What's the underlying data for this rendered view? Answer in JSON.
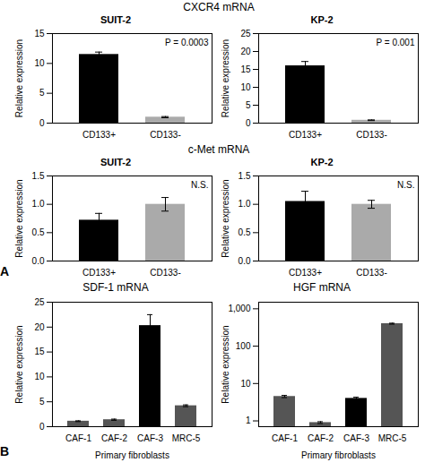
{
  "chart_data": [
    {
      "type": "bar",
      "title": "CXCR4 mRNA",
      "subtitle": "SUIT-2",
      "categories": [
        "CD133+",
        "CD133-"
      ],
      "values": [
        11.5,
        1.0
      ],
      "errors": [
        0.4,
        0.1
      ],
      "colors": [
        "#000000",
        "#aaaaaa"
      ],
      "ylabel": "Relative expression",
      "ylim": [
        0,
        15
      ],
      "yticks": [
        0,
        5,
        10,
        15
      ],
      "annotations": [
        "P = 0.0003"
      ]
    },
    {
      "type": "bar",
      "subtitle": "KP-2",
      "categories": [
        "CD133+",
        "CD133-"
      ],
      "values": [
        16.0,
        0.8
      ],
      "errors": [
        1.2,
        0.1
      ],
      "colors": [
        "#000000",
        "#aaaaaa"
      ],
      "ylabel": "Relative expression",
      "ylim": [
        0,
        25
      ],
      "yticks": [
        0,
        5,
        10,
        15,
        20,
        25
      ],
      "annotations": [
        "P = 0.001"
      ]
    },
    {
      "type": "bar",
      "title": "c-Met mRNA",
      "subtitle": "SUIT-2",
      "categories": [
        "CD133+",
        "CD133-"
      ],
      "values": [
        0.72,
        1.0
      ],
      "errors": [
        0.12,
        0.12
      ],
      "colors": [
        "#000000",
        "#aaaaaa"
      ],
      "ylabel": "Relative expression",
      "ylim": [
        0,
        1.5
      ],
      "yticks": [
        {
          "value": 0,
          "label": "0.0"
        },
        0.5,
        {
          "value": 1,
          "label": "1.0"
        },
        1.5
      ],
      "annotations": [
        "N.S."
      ]
    },
    {
      "type": "bar",
      "subtitle": "KP-2",
      "categories": [
        "CD133+",
        "CD133-"
      ],
      "values": [
        1.05,
        1.0
      ],
      "errors": [
        0.18,
        0.07
      ],
      "colors": [
        "#000000",
        "#aaaaaa"
      ],
      "ylabel": "Relative expression",
      "ylim": [
        0,
        1.5
      ],
      "yticks": [
        {
          "value": 0,
          "label": "0.0"
        },
        0.5,
        {
          "value": 1,
          "label": "1.0"
        },
        1.5
      ],
      "annotations": [
        "N.S."
      ]
    },
    {
      "type": "bar",
      "title": "SDF-1 mRNA",
      "categories": [
        "CAF-1",
        "CAF-2",
        "CAF-3",
        "MRC-5"
      ],
      "values": [
        1.1,
        1.4,
        20.3,
        4.2
      ],
      "errors": [
        0.08,
        0.12,
        2.2,
        0.18
      ],
      "colors": [
        "#555555",
        "#555555",
        "#000000",
        "#555555"
      ],
      "xlabel": "Primary fibroblasts",
      "ylabel": "Relative expression",
      "ylim": [
        0,
        25
      ],
      "yticks": [
        0,
        5,
        10,
        15,
        20,
        25
      ]
    },
    {
      "type": "bar",
      "title": "HGF mRNA",
      "categories": [
        "CAF-1",
        "CAF-2",
        "CAF-3",
        "MRC-5"
      ],
      "values": [
        4.5,
        0.9,
        4.0,
        400.0
      ],
      "errors": [
        0.3,
        0.05,
        0.3,
        12.0
      ],
      "colors": [
        "#555555",
        "#555555",
        "#000000",
        "#555555"
      ],
      "xlabel": "Primary fibroblasts",
      "ylabel": "Relative expression",
      "log": "y",
      "ylim": [
        0.7,
        1500
      ],
      "yticks": [
        1,
        10,
        100,
        {
          "value": 1000,
          "label": "1,000"
        }
      ]
    }
  ],
  "annotations": [
    "A",
    "B"
  ]
}
